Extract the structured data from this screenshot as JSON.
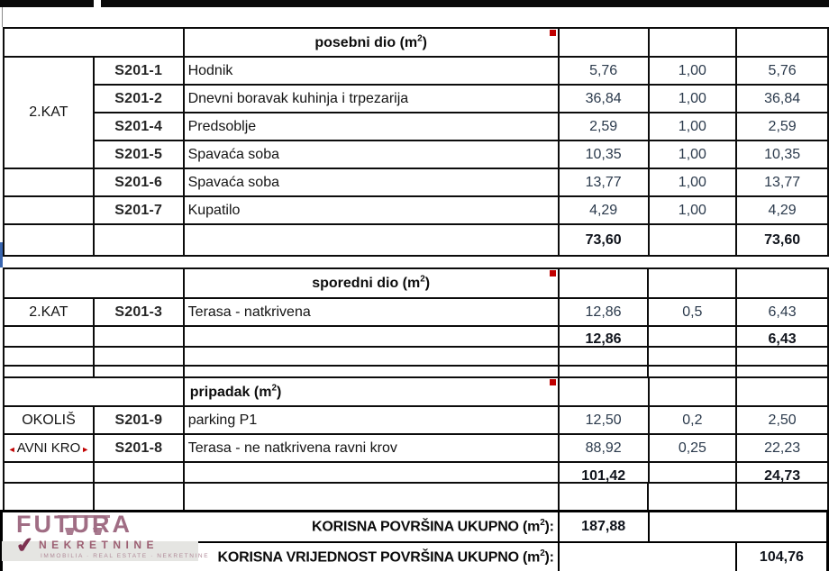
{
  "sections": [
    {
      "title": "posebni dio (m²)",
      "floor": "2.KAT",
      "rows": [
        {
          "code": "S201-1",
          "name": "Hodnik",
          "area": "5,76",
          "coef": "1,00",
          "value": "5,76"
        },
        {
          "code": "S201-2",
          "name": "Dnevni boravak kuhinja i trpezarija",
          "area": "36,84",
          "coef": "1,00",
          "value": "36,84"
        },
        {
          "code": "S201-4",
          "name": "Predsoblje",
          "area": "2,59",
          "coef": "1,00",
          "value": "2,59"
        },
        {
          "code": "S201-5",
          "name": "Spavaća soba",
          "area": "10,35",
          "coef": "1,00",
          "value": "10,35"
        },
        {
          "code": "S201-6",
          "name": "Spavaća soba",
          "area": "13,77",
          "coef": "1,00",
          "value": "13,77"
        },
        {
          "code": "S201-7",
          "name": "Kupatilo",
          "area": "4,29",
          "coef": "1,00",
          "value": "4,29"
        }
      ],
      "total_area": "73,60",
      "total_value": "73,60"
    },
    {
      "title": "sporedni dio (m²)",
      "rows": [
        {
          "floor": "2.KAT",
          "code": "S201-3",
          "name": "Terasa - natkrivena",
          "area": "12,86",
          "coef": "0,5",
          "value": "6,43"
        }
      ],
      "total_area": "12,86",
      "total_value": "6,43"
    },
    {
      "title": "pripadak (m²)",
      "rows": [
        {
          "floor": "OKOLIŠ",
          "code": "S201-9",
          "name": "parking P1",
          "area": "12,50",
          "coef": "0,2",
          "value": "2,50"
        },
        {
          "floor": "AVNI KRO",
          "overflow_left": "◄",
          "overflow_right": "►",
          "code": "S201-8",
          "name": "Terasa - ne natkrivena ravni krov",
          "area": "88,92",
          "coef": "0,25",
          "value": "22,23"
        }
      ],
      "total_area": "101,42",
      "total_value": "24,73"
    }
  ],
  "summary": {
    "useful_area_label": "KORISNA POVRŠINA UKUPNO (m²):",
    "useful_area_value": "187,88",
    "useful_value_label": "KORISNA  VRIJEDNOST POVRŠINA UKUPNO (m²):",
    "useful_value_value": "104,76"
  },
  "logo": {
    "brand": "FUTURA",
    "subtitle": "NEKRETNINE",
    "tagline": "immobilia · real estate · nekretnine",
    "check_icon": "✔"
  },
  "colors": {
    "area_cell": "#dbe4f1",
    "coef_cell": "#eae8e1",
    "value_cell": "#e8e7e3",
    "summary_band": "#dbe2f1",
    "comment_marker": "#c00000",
    "overflow_marker": "#c00000",
    "logo_rose": "#a06d84",
    "logo_maroon": "#7d3150",
    "logo_subtitle": "#9c5f72"
  }
}
